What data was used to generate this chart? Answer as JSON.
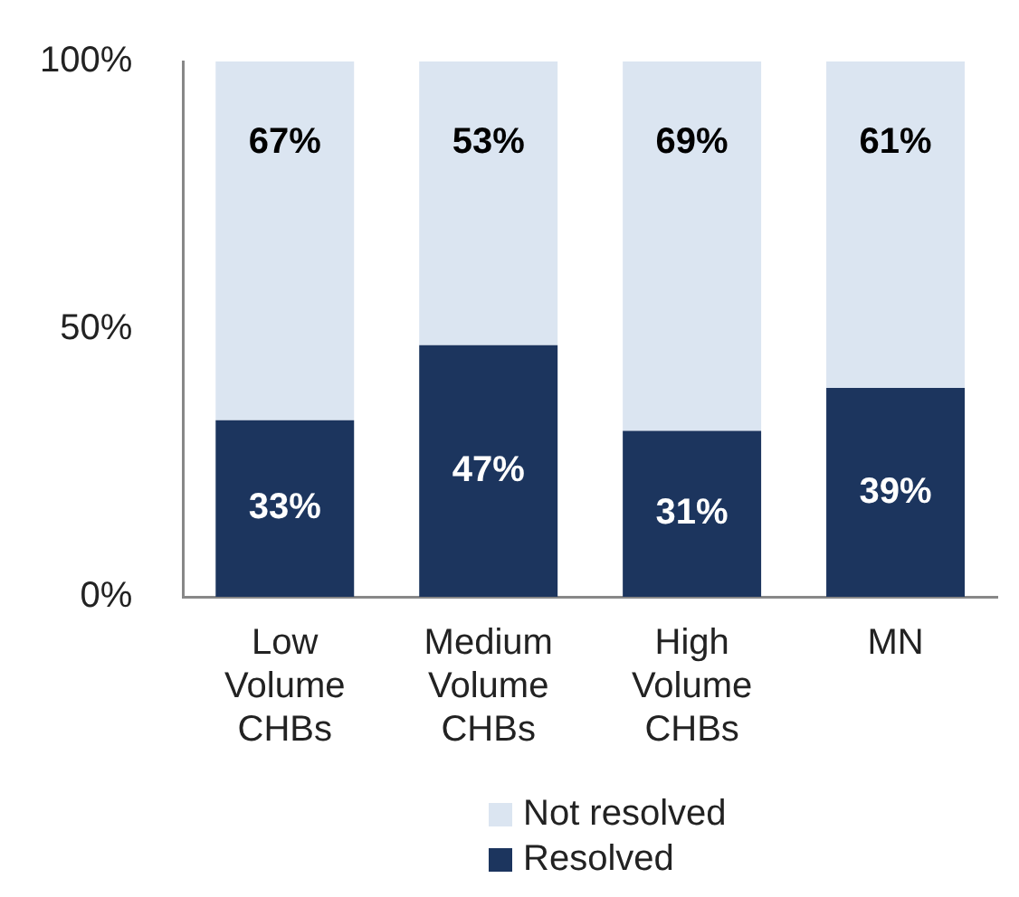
{
  "chart_data": {
    "type": "bar",
    "stacked": true,
    "categories": [
      "Low Volume CHBs",
      "Medium Volume CHBs",
      "High Volume CHBs",
      "MN"
    ],
    "series": [
      {
        "name": "Resolved",
        "color": "#1c355e",
        "values": [
          33,
          47,
          31,
          39
        ],
        "value_labels": [
          "33%",
          "47%",
          "31%",
          "39%"
        ]
      },
      {
        "name": "Not resolved",
        "color": "#dbe5f1",
        "values": [
          67,
          53,
          69,
          61
        ],
        "value_labels": [
          "67%",
          "53%",
          "69%",
          "61%"
        ]
      }
    ],
    "ylim": [
      0,
      100
    ],
    "yticks": [
      {
        "value": 0,
        "label": "0%"
      },
      {
        "value": 50,
        "label": "50%"
      },
      {
        "value": 100,
        "label": "100%"
      }
    ],
    "grid": false,
    "legend": "bottom"
  }
}
